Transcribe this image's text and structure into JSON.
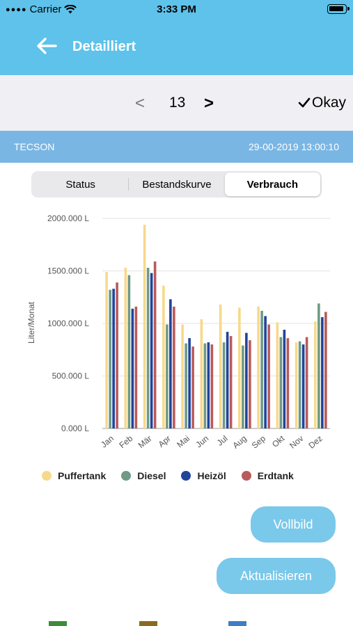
{
  "status_bar": {
    "carrier": "Carrier",
    "time": "3:33 PM"
  },
  "nav": {
    "title": "Detailliert",
    "back_icon": "arrow-left-icon"
  },
  "pager": {
    "prev": "<",
    "value": "13",
    "next": ">",
    "okay_label": "Okay"
  },
  "info": {
    "name": "TECSON",
    "datetime": "29-00-2019 13:00:10"
  },
  "tabs": [
    {
      "label": "Status",
      "active": false
    },
    {
      "label": "Bestandskurve",
      "active": false
    },
    {
      "label": "Verbrauch",
      "active": true
    }
  ],
  "chart_data": {
    "type": "bar",
    "ylabel": "Liter/Monat",
    "ylim": [
      0,
      2000
    ],
    "yticks": [
      0,
      500,
      1000,
      1500,
      2000
    ],
    "ytick_labels": [
      "0.000 L",
      "500.000 L",
      "1000.000 L",
      "1500.000 L",
      "2000.000 L"
    ],
    "categories": [
      "Jan",
      "Feb",
      "Mär",
      "Apr",
      "Mai",
      "Jun",
      "Jul",
      "Aug",
      "Sep",
      "Okt",
      "Nov",
      "Dez"
    ],
    "series": [
      {
        "name": "Puffertank",
        "color": "#f7d98b",
        "values": [
          1490,
          1530,
          1940,
          1360,
          990,
          1040,
          1180,
          1150,
          1160,
          1010,
          820,
          1020
        ]
      },
      {
        "name": "Diesel",
        "color": "#6f9a86",
        "values": [
          1320,
          1460,
          1530,
          990,
          810,
          810,
          820,
          790,
          1120,
          870,
          830,
          1190
        ]
      },
      {
        "name": "Heizöl",
        "color": "#1f449a",
        "values": [
          1330,
          1140,
          1480,
          1230,
          860,
          820,
          920,
          910,
          1070,
          940,
          800,
          1060
        ]
      },
      {
        "name": "Erdtank",
        "color": "#b95a5c",
        "values": [
          1390,
          1160,
          1590,
          1160,
          780,
          800,
          880,
          840,
          990,
          860,
          870,
          1110
        ]
      }
    ],
    "grid": true,
    "legend": "bottom"
  },
  "buttons": {
    "fullscreen": "Vollbild",
    "refresh": "Aktualisieren"
  }
}
